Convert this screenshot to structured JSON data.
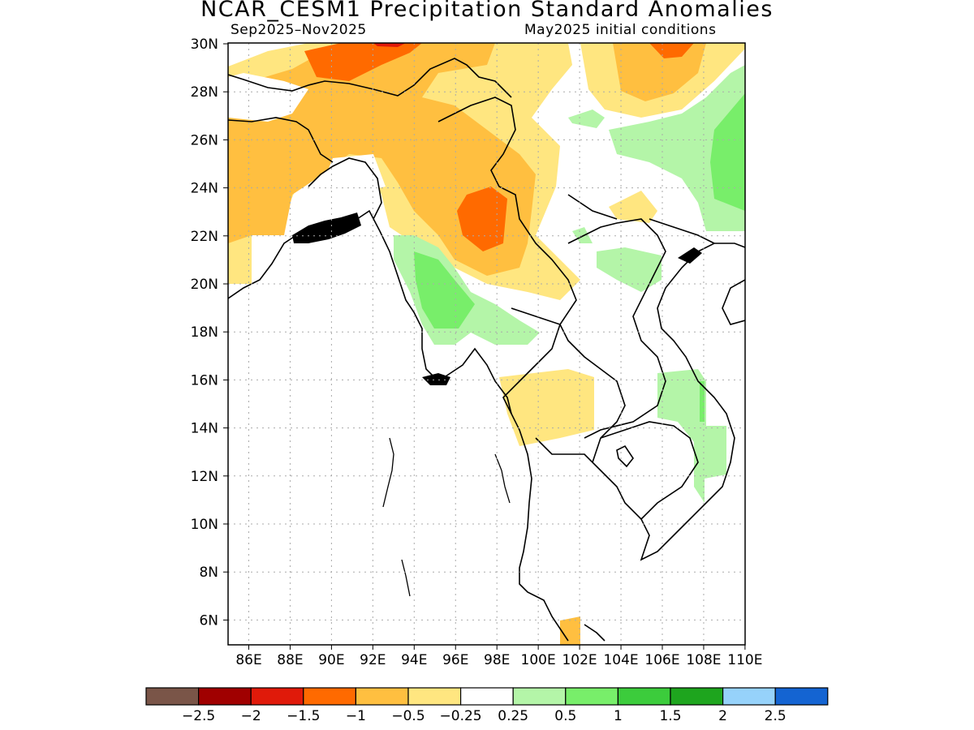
{
  "title": "NCAR_CESM1 Precipitation Standard Anomalies",
  "season": "Sep2025–Nov2025",
  "init": "May2025 initial conditions",
  "lat_labels": [
    "30N",
    "28N",
    "26N",
    "24N",
    "22N",
    "20N",
    "18N",
    "16N",
    "14N",
    "12N",
    "10N",
    "8N",
    "6N"
  ],
  "lon_labels": [
    "86E",
    "88E",
    "90E",
    "92E",
    "94E",
    "96E",
    "98E",
    "100E",
    "102E",
    "104E",
    "106E",
    "108E",
    "110E"
  ],
  "colorbar": {
    "colors": [
      "#7a5548",
      "#a00000",
      "#e01a0a",
      "#ff6a00",
      "#ffbf40",
      "#ffe680",
      "#ffffff",
      "#b4f5a8",
      "#78ee6a",
      "#3ccc3c",
      "#1ea51e",
      "#96d2fa",
      "#1464d2"
    ],
    "labels": [
      "−2.5",
      "−2",
      "−1.5",
      "−1",
      "−0.5",
      "−0.25",
      "0.25",
      "0.5",
      "1",
      "1.5",
      "2",
      "2.5"
    ]
  }
}
